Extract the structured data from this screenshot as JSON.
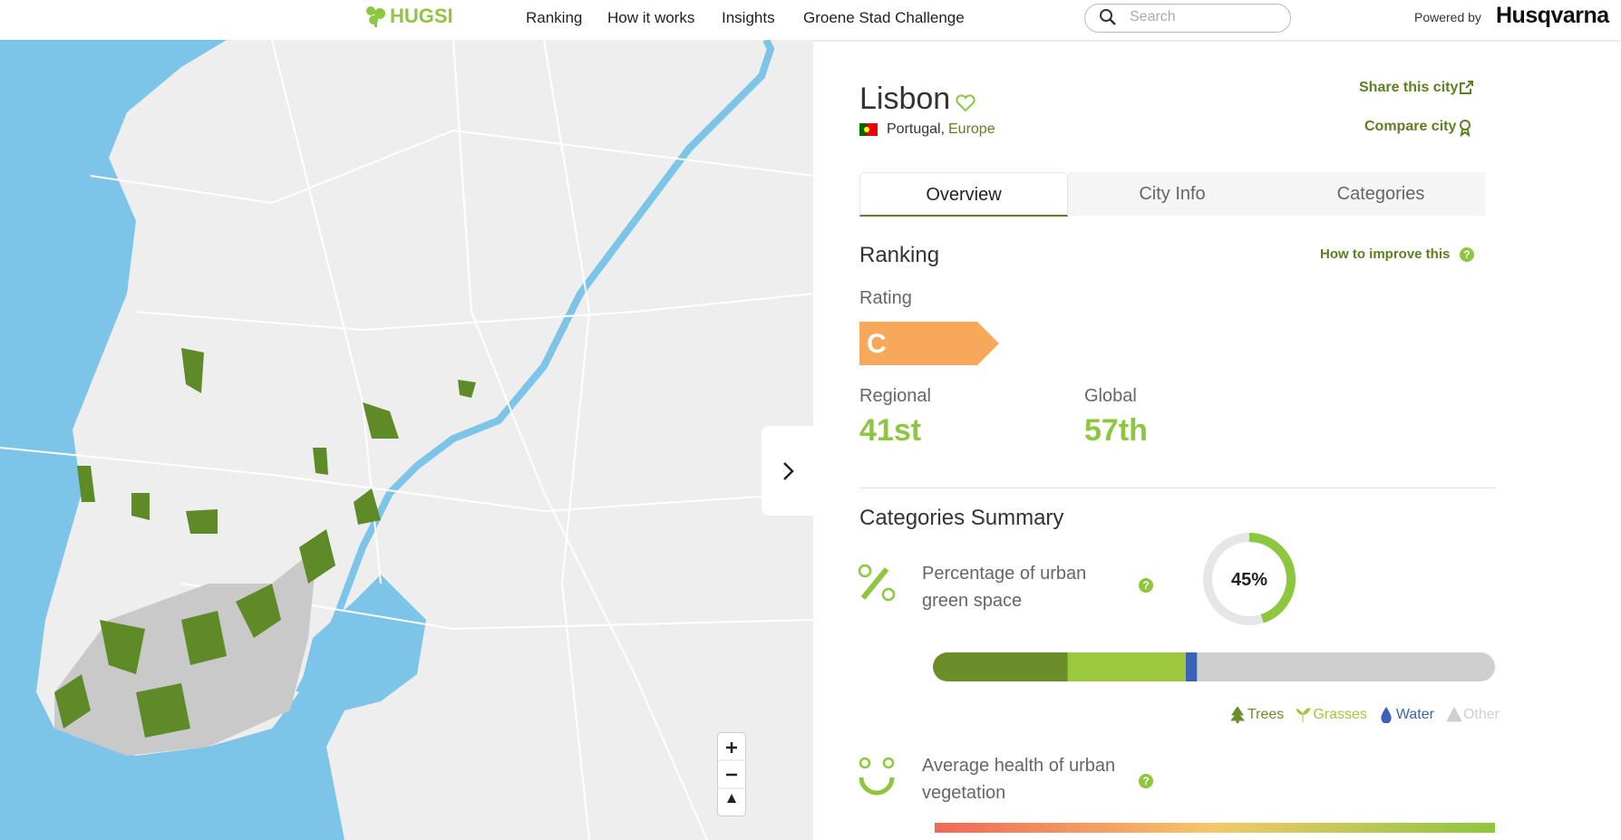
{
  "header": {
    "logo": "HUGSI",
    "nav": [
      "Ranking",
      "How it works",
      "Insights",
      "Groene Stad Challenge"
    ],
    "search_placeholder": "Search",
    "powered_by": "Powered by",
    "brand": "Husqvarna"
  },
  "city": {
    "name": "Lisbon",
    "country": "Portugal,",
    "region": "Europe",
    "share": "Share this city",
    "compare": "Compare city"
  },
  "tabs": [
    "Overview",
    "City Info",
    "Categories"
  ],
  "ranking": {
    "title": "Ranking",
    "improve": "How to improve this",
    "rating_label": "Rating",
    "rating": "C",
    "regional_label": "Regional",
    "regional": "41st",
    "global_label": "Global",
    "global": "57th"
  },
  "categories_summary": {
    "title": "Categories Summary",
    "green_space": {
      "label": "Percentage of urban green space",
      "values": [
        45
      ],
      "value_labels": [
        "45%"
      ],
      "range": [
        0,
        100
      ],
      "color": "#8dc63f"
    },
    "land_cover": {
      "range": [
        0,
        100
      ],
      "series": [
        {
          "name": "Trees",
          "color": "#6b8e2a",
          "values": [
            24
          ]
        },
        {
          "name": "Grasses",
          "color": "#9bc83c",
          "values": [
            21
          ]
        },
        {
          "name": "Water",
          "color": "#3b62b6",
          "values": [
            2
          ]
        },
        {
          "name": "Other",
          "color": "#cfcfcf",
          "values": [
            53
          ]
        }
      ]
    },
    "health": {
      "label": "Average health of urban vegetation"
    }
  }
}
